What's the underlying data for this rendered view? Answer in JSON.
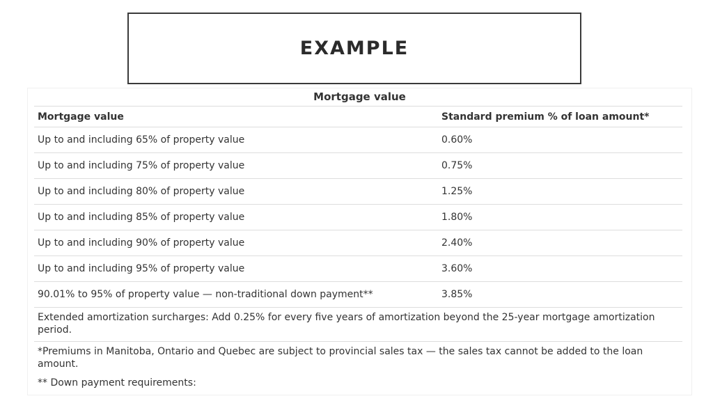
{
  "slide": {
    "title": "EXAMPLE"
  },
  "table": {
    "caption": "Mortgage value",
    "headers": [
      "Mortgage value",
      "Standard premium % of loan amount*"
    ],
    "rows": [
      [
        "Up to and including 65% of property value",
        "0.60%"
      ],
      [
        "Up to and including 75% of property value",
        "0.75%"
      ],
      [
        "Up to and including 80% of property value",
        "1.25%"
      ],
      [
        "Up to and including 85% of property value",
        "1.80%"
      ],
      [
        "Up to and including 90% of property value",
        "2.40%"
      ],
      [
        "Up to and including 95% of property value",
        "3.60%"
      ],
      [
        "90.01% to 95% of property value — non-traditional down payment**",
        "3.85%"
      ]
    ],
    "notes": [
      "Extended amortization surcharges: Add 0.25% for every five years of amortization beyond the 25-year mortgage amortization period.",
      "*Premiums in Manitoba, Ontario and Quebec are subject to provincial sales tax — the sales tax cannot be added to the loan amount.",
      "** Down payment requirements:"
    ]
  }
}
